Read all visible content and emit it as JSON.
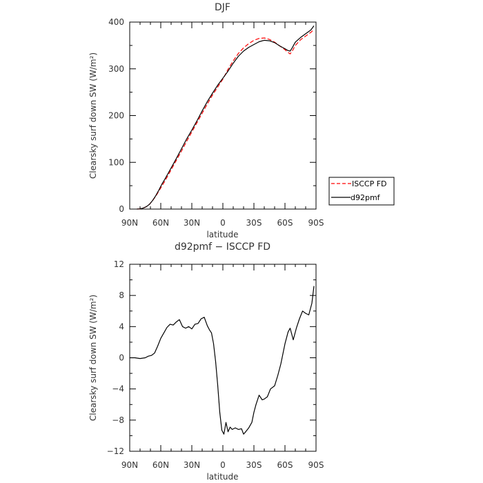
{
  "chart_data": [
    {
      "type": "line",
      "title": "DJF",
      "xlabel": "latitude",
      "ylabel": "Clearsky surf down SW (W/m²)",
      "x_range": [
        90,
        -90
      ],
      "x_tick_values": [
        90,
        60,
        30,
        0,
        -30,
        -60,
        -90
      ],
      "x_tick_labels": [
        "90N",
        "60N",
        "30N",
        "0",
        "30S",
        "60S",
        "90S"
      ],
      "ylim": [
        0,
        400
      ],
      "y_ticks": [
        0,
        100,
        200,
        300,
        400
      ],
      "y_tick_labels": [
        "0",
        "100",
        "200",
        "300",
        "400"
      ],
      "grid": false,
      "legend_position": "right, outside",
      "series": [
        {
          "name": "ISCCP FD",
          "color": "#ff0000",
          "dash": "dashed",
          "x": [
            83,
            80,
            77,
            74,
            71,
            68,
            65,
            62,
            59,
            56,
            53,
            50,
            45,
            40,
            35,
            30,
            25,
            20,
            15,
            10,
            5,
            0,
            -5,
            -10,
            -15,
            -20,
            -25,
            -30,
            -35,
            -40,
            -45,
            -50,
            -55,
            -60,
            -63,
            -65,
            -67,
            -70,
            -75,
            -80,
            -85,
            -88
          ],
          "y": [
            0,
            0.5,
            2,
            5,
            10,
            18,
            27,
            38,
            49,
            60,
            72,
            84,
            104,
            124,
            145,
            165,
            185,
            205,
            225,
            244,
            261,
            278,
            299,
            317,
            333,
            345,
            354,
            361,
            365,
            366,
            363,
            357,
            349,
            341,
            335,
            332,
            338,
            350,
            362,
            370,
            378,
            384
          ]
        },
        {
          "name": "d92pmf",
          "color": "#000000",
          "dash": "solid",
          "x": [
            83,
            80,
            77,
            74,
            71,
            68,
            65,
            62,
            59,
            56,
            53,
            50,
            45,
            40,
            35,
            30,
            25,
            20,
            15,
            10,
            5,
            0,
            -5,
            -10,
            -15,
            -20,
            -25,
            -30,
            -35,
            -40,
            -45,
            -50,
            -55,
            -60,
            -63,
            -65,
            -67,
            -70,
            -75,
            -80,
            -85,
            -88
          ],
          "y": [
            0,
            0.5,
            2,
            5,
            10,
            18,
            28,
            40,
            53,
            64,
            76,
            88,
            108,
            129,
            150,
            169,
            189,
            210,
            230,
            248,
            265,
            280,
            295,
            312,
            327,
            338,
            346,
            352,
            358,
            361,
            360,
            356,
            349,
            343,
            339,
            338,
            345,
            357,
            367,
            375,
            383,
            392
          ]
        }
      ]
    },
    {
      "type": "line",
      "title": "d92pmf − ISCCP FD",
      "xlabel": "latitude",
      "ylabel": "Clearsky surf down SW (W/m²)",
      "x_range": [
        90,
        -90
      ],
      "x_tick_values": [
        90,
        60,
        30,
        0,
        -30,
        -60,
        -90
      ],
      "x_tick_labels": [
        "90N",
        "60N",
        "30N",
        "0",
        "30S",
        "60S",
        "90S"
      ],
      "ylim": [
        -12,
        12
      ],
      "y_ticks": [
        -12,
        -8,
        -4,
        0,
        4,
        8,
        12
      ],
      "y_tick_labels": [
        "−12",
        "−8",
        "−4",
        "0",
        "4",
        "8",
        "12"
      ],
      "grid": false,
      "series": [
        {
          "color": "#000000",
          "dash": "solid",
          "x": [
            90,
            85,
            80,
            75,
            72,
            69,
            66,
            63,
            60,
            57,
            54,
            51,
            48,
            45,
            42,
            39,
            36,
            33,
            30,
            27,
            24,
            21,
            18,
            15,
            13,
            11,
            9,
            7,
            5,
            3,
            1,
            -1,
            -3,
            -5,
            -7,
            -9,
            -12,
            -15,
            -18,
            -20,
            -22,
            -25,
            -28,
            -30,
            -32,
            -35,
            -38,
            -40,
            -43,
            -46,
            -50,
            -53,
            -56,
            -58,
            -60,
            -63,
            -65,
            -68,
            -71,
            -74,
            -77,
            -80,
            -83,
            -86,
            -88
          ],
          "y": [
            0,
            0,
            -0.1,
            0,
            0.2,
            0.3,
            0.6,
            1.5,
            2.5,
            3.2,
            3.9,
            4.3,
            4.2,
            4.6,
            4.9,
            4.0,
            3.8,
            4.0,
            3.7,
            4.3,
            4.4,
            5.0,
            5.2,
            4.1,
            3.6,
            3.2,
            1.8,
            -0.5,
            -3.5,
            -7.0,
            -9.3,
            -9.8,
            -8.3,
            -9.5,
            -8.9,
            -9.2,
            -9.0,
            -9.2,
            -9.1,
            -9.8,
            -9.5,
            -9.0,
            -8.3,
            -7.0,
            -6.0,
            -4.8,
            -5.4,
            -5.3,
            -5.0,
            -4.0,
            -3.6,
            -2.3,
            -0.8,
            0.5,
            1.8,
            3.3,
            3.8,
            2.3,
            3.8,
            5.0,
            6.0,
            5.7,
            5.5,
            7.0,
            9.2
          ]
        }
      ]
    }
  ],
  "legend": {
    "items": [
      {
        "label": "ISCCP FD",
        "color": "#ff0000",
        "dash": "dashed"
      },
      {
        "label": "d92pmf",
        "color": "#000000",
        "dash": "solid"
      }
    ]
  }
}
